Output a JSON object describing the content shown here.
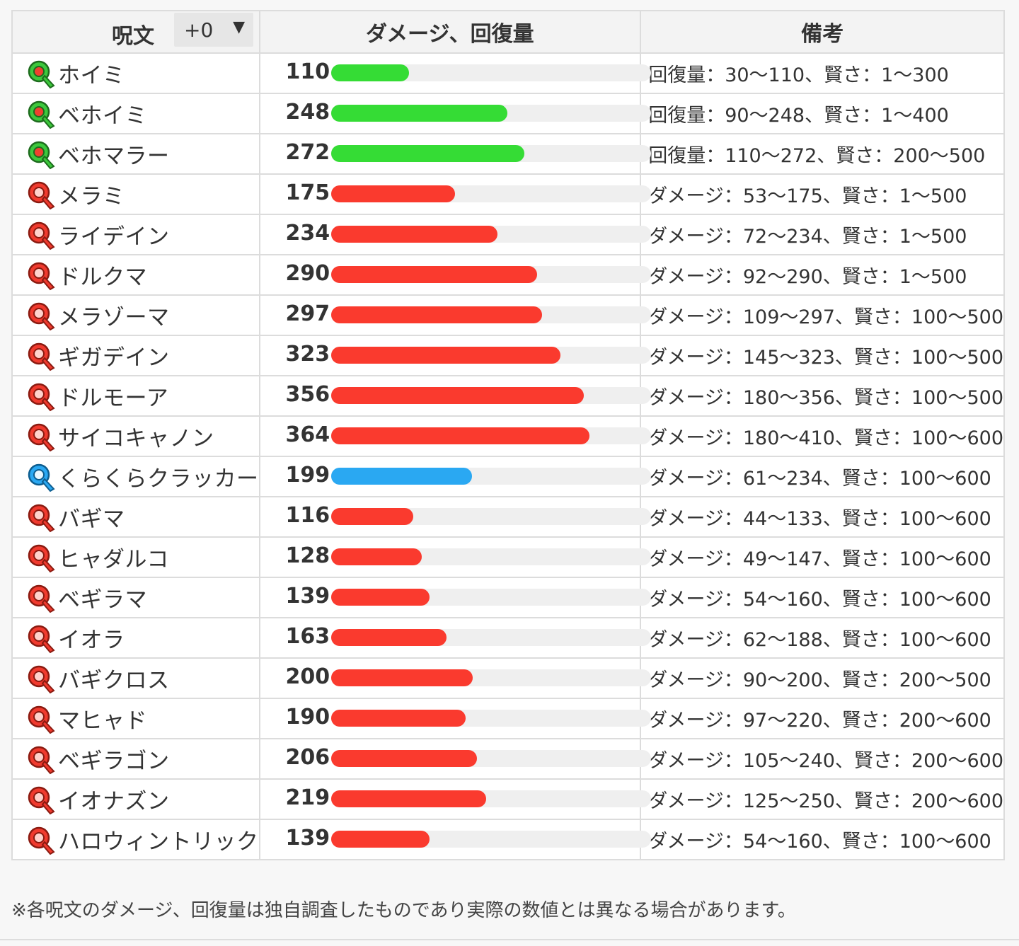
{
  "header": {
    "spell_col": "呪文",
    "level_value": "+0",
    "level_arrow": "▼",
    "value_col": "ダメージ、回復量",
    "note_col": "備考"
  },
  "colors": {
    "heal": "#35dc35",
    "attack": "#fa3a2e",
    "special": "#2aa8f2"
  },
  "bar_scale_max": 450,
  "rows": [
    {
      "name": "ホイミ",
      "value": "110",
      "kind": "heal",
      "icon": "green-spell-icon",
      "note": "回復量：30〜110、賢さ：1〜300"
    },
    {
      "name": "ベホイミ",
      "value": "248",
      "kind": "heal",
      "icon": "green-spell-icon",
      "note": "回復量：90〜248、賢さ：1〜400"
    },
    {
      "name": "ベホマラー",
      "value": "272",
      "kind": "heal",
      "icon": "green-spell-icon",
      "note": "回復量：110〜272、賢さ：200〜500"
    },
    {
      "name": "メラミ",
      "value": "175",
      "kind": "attack",
      "icon": "red-spell-icon",
      "note": "ダメージ：53〜175、賢さ：1〜500"
    },
    {
      "name": "ライデイン",
      "value": "234",
      "kind": "attack",
      "icon": "red-spell-icon",
      "note": "ダメージ：72〜234、賢さ：1〜500"
    },
    {
      "name": "ドルクマ",
      "value": "290",
      "kind": "attack",
      "icon": "red-spell-icon",
      "note": "ダメージ：92〜290、賢さ：1〜500"
    },
    {
      "name": "メラゾーマ",
      "value": "297",
      "kind": "attack",
      "icon": "red-spell-icon",
      "note": "ダメージ：109〜297、賢さ：100〜500"
    },
    {
      "name": "ギガデイン",
      "value": "323",
      "kind": "attack",
      "icon": "red-spell-icon",
      "note": "ダメージ：145〜323、賢さ：100〜500"
    },
    {
      "name": "ドルモーア",
      "value": "356",
      "kind": "attack",
      "icon": "red-spell-icon",
      "note": "ダメージ：180〜356、賢さ：100〜500"
    },
    {
      "name": "サイコキャノン",
      "value": "364",
      "kind": "attack",
      "icon": "red-spell-icon",
      "note": "ダメージ：180〜410、賢さ：100〜600"
    },
    {
      "name": "くらくらクラッカー",
      "value": "199",
      "kind": "special",
      "icon": "blue-spell-icon",
      "note": "ダメージ：61〜234、賢さ：100〜600"
    },
    {
      "name": "バギマ",
      "value": "116",
      "kind": "attack",
      "icon": "red-spell-icon",
      "note": "ダメージ：44〜133、賢さ：100〜600"
    },
    {
      "name": "ヒャダルコ",
      "value": "128",
      "kind": "attack",
      "icon": "red-spell-icon",
      "note": "ダメージ：49〜147、賢さ：100〜600"
    },
    {
      "name": "ベギラマ",
      "value": "139",
      "kind": "attack",
      "icon": "red-spell-icon",
      "note": "ダメージ：54〜160、賢さ：100〜600"
    },
    {
      "name": "イオラ",
      "value": "163",
      "kind": "attack",
      "icon": "red-spell-icon",
      "note": "ダメージ：62〜188、賢さ：100〜600"
    },
    {
      "name": "バギクロス",
      "value": "200",
      "kind": "attack",
      "icon": "red-spell-icon",
      "note": "ダメージ：90〜200、賢さ：200〜500"
    },
    {
      "name": "マヒャド",
      "value": "190",
      "kind": "attack",
      "icon": "red-spell-icon",
      "note": "ダメージ：97〜220、賢さ：200〜600"
    },
    {
      "name": "ベギラゴン",
      "value": "206",
      "kind": "attack",
      "icon": "red-spell-icon",
      "note": "ダメージ：105〜240、賢さ：200〜600"
    },
    {
      "name": "イオナズン",
      "value": "219",
      "kind": "attack",
      "icon": "red-spell-icon",
      "note": "ダメージ：125〜250、賢さ：200〜600"
    },
    {
      "name": "ハロウィントリック",
      "value": "139",
      "kind": "attack",
      "icon": "red-spell-icon",
      "note": "ダメージ：54〜160、賢さ：100〜600"
    }
  ],
  "footnote": "※各呪文のダメージ、回復量は独自調査したものであり実際の数値とは異なる場合があります。"
}
